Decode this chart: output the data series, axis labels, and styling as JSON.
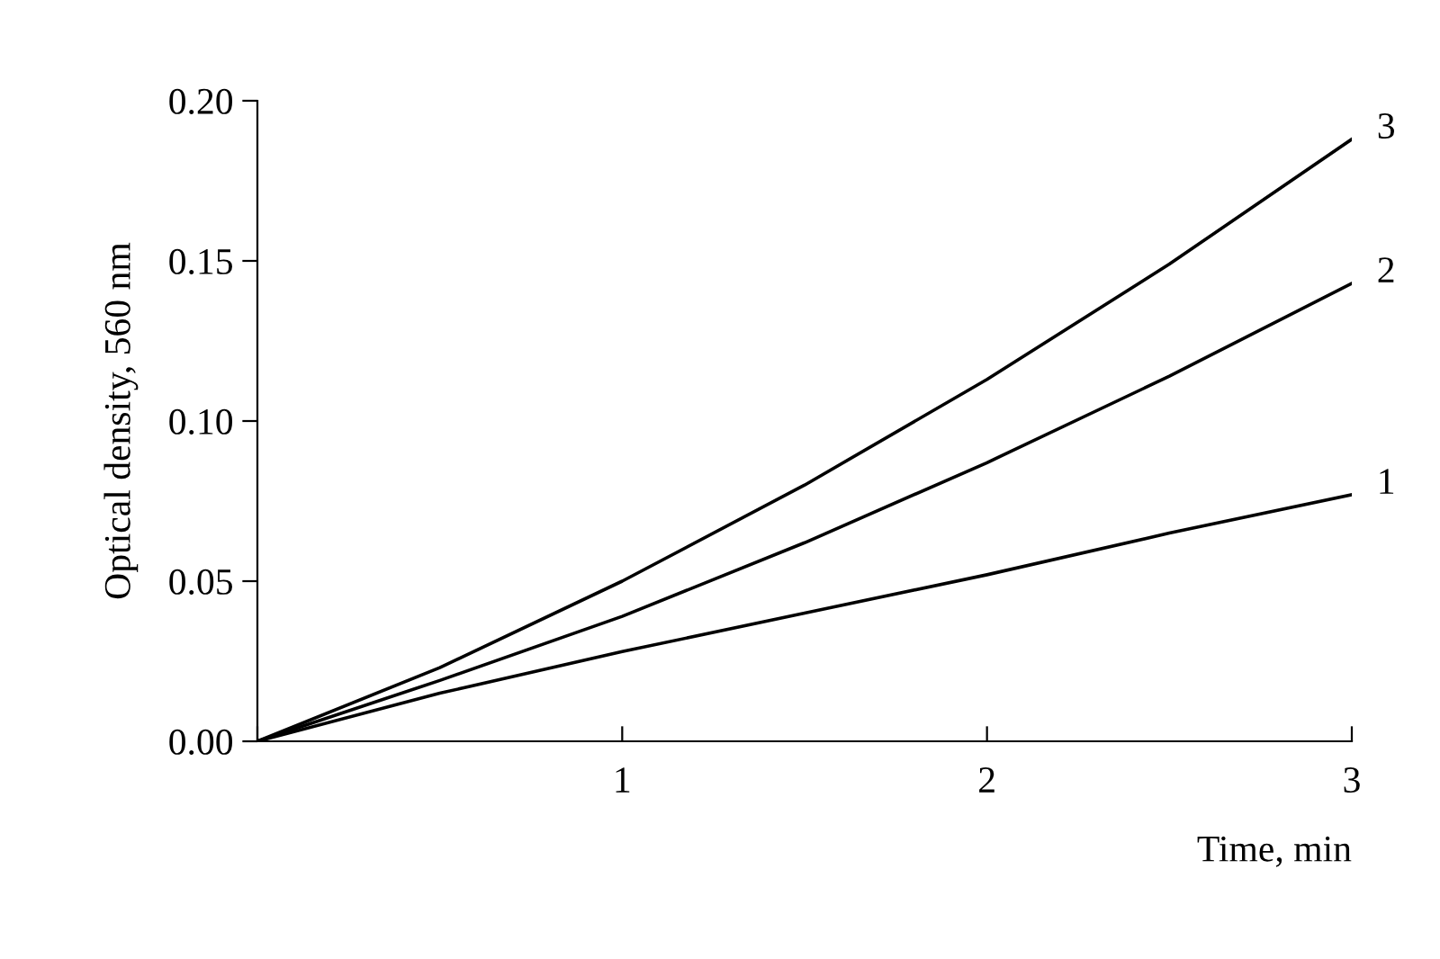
{
  "chart_data": {
    "type": "line",
    "xlabel": "Time, min",
    "ylabel": "Optical density, 560 nm",
    "x": [
      0,
      0.5,
      1,
      1.5,
      2,
      2.5,
      3
    ],
    "series": [
      {
        "name": "1",
        "color": "#000000",
        "values": [
          0,
          0.015,
          0.028,
          0.04,
          0.052,
          0.065,
          0.077
        ]
      },
      {
        "name": "2",
        "color": "#000000",
        "values": [
          0,
          0.019,
          0.039,
          0.062,
          0.087,
          0.114,
          0.143
        ]
      },
      {
        "name": "3",
        "color": "#000000",
        "values": [
          0,
          0.023,
          0.05,
          0.08,
          0.113,
          0.149,
          0.188
        ]
      }
    ],
    "xlim": [
      0,
      3
    ],
    "xticks": [
      {
        "value": 0,
        "label": null
      },
      1,
      2,
      3
    ],
    "ylim": [
      0,
      0.2
    ],
    "yticks": [
      {
        "value": 0,
        "label": "0.00"
      },
      {
        "value": 0.05,
        "label": "0.05"
      },
      {
        "value": 0.1,
        "label": "0.10"
      },
      {
        "value": 0.15,
        "label": "0.15"
      },
      {
        "value": 0.2,
        "label": "0.20"
      }
    ],
    "grid": false,
    "legend": false,
    "marker": "none",
    "line_style": "solid"
  }
}
